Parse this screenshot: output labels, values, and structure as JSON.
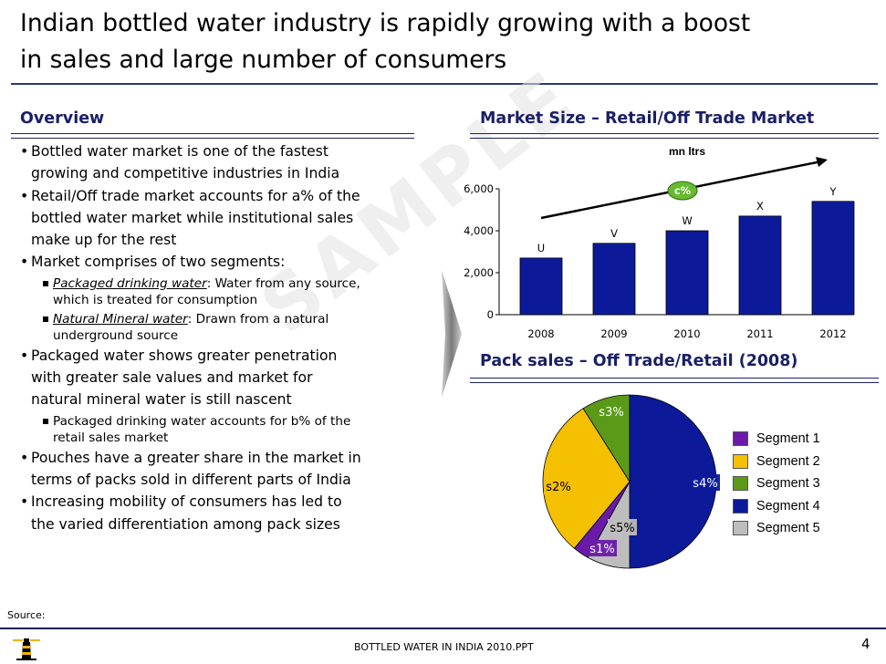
{
  "title": {
    "line1": "Indian bottled water industry is rapidly growing with a boost",
    "line2": "in sales and large number of consumers"
  },
  "overview": {
    "heading": "Overview",
    "bullets": [
      {
        "level": 1,
        "lines": [
          "Bottled water market is one of the fastest",
          "growing and competitive industries in India"
        ]
      },
      {
        "level": 1,
        "lines": [
          "Retail/Off trade market accounts for a% of the",
          "bottled water market while institutional sales",
          "make up for the rest"
        ]
      },
      {
        "level": 1,
        "lines": [
          "Market comprises of two segments:"
        ]
      },
      {
        "level": 2,
        "lead": "Packaged drinking water",
        "lines": [
          ": Water from any source,",
          "which is treated for consumption"
        ]
      },
      {
        "level": 2,
        "lead": "Natural Mineral water",
        "lines": [
          ": Drawn from a natural",
          "underground source"
        ]
      },
      {
        "level": 1,
        "lines": [
          "Packaged water shows greater penetration",
          "with greater sale values and market for",
          "natural mineral water is still nascent"
        ]
      },
      {
        "level": 2,
        "lines": [
          "Packaged drinking water accounts for b% of the",
          "retail sales market"
        ]
      },
      {
        "level": 1,
        "lines": [
          "Pouches have a greater share in the market in",
          "terms of packs sold in different parts of India"
        ]
      },
      {
        "level": 1,
        "lines": [
          "Increasing mobility of consumers has led to",
          "the varied differentiation among pack sizes"
        ]
      }
    ]
  },
  "watermark": "SAMPLE",
  "chart_data": [
    {
      "type": "bar",
      "title": "Market Size –  Retail/Off Trade Market",
      "unit_label": "mn ltrs",
      "categories": [
        "2008",
        "2009",
        "2010",
        "2011",
        "2012"
      ],
      "values": [
        2700,
        3400,
        4000,
        4700,
        5400
      ],
      "data_labels": [
        "U",
        "V",
        "W",
        "X",
        "Y"
      ],
      "y_ticks": [
        "0",
        "2,000",
        "4,000",
        "6,000"
      ],
      "ylim": [
        0,
        6000
      ],
      "growth_label": "c%",
      "bar_color": "#0c1a9a",
      "badge_color": "#66bb2e"
    },
    {
      "type": "pie",
      "title": "Pack sales – Off Trade/Retail (2008)",
      "series": [
        {
          "name": "Segment 1",
          "label": "s1%",
          "value": 3,
          "color": "#6a1aa8"
        },
        {
          "name": "Segment 2",
          "label": "s2%",
          "value": 30,
          "color": "#f5c000"
        },
        {
          "name": "Segment 3",
          "label": "s3%",
          "value": 9,
          "color": "#5a9a18"
        },
        {
          "name": "Segment 4",
          "label": "s4%",
          "value": 50,
          "color": "#0c1a9a"
        },
        {
          "name": "Segment 5",
          "label": "s5%",
          "value": 8,
          "color": "#bdbdbd"
        }
      ]
    }
  ],
  "footer": {
    "source": "Source:",
    "doc": "BOTTLED WATER IN INDIA 2010.PPT",
    "page": "4"
  }
}
